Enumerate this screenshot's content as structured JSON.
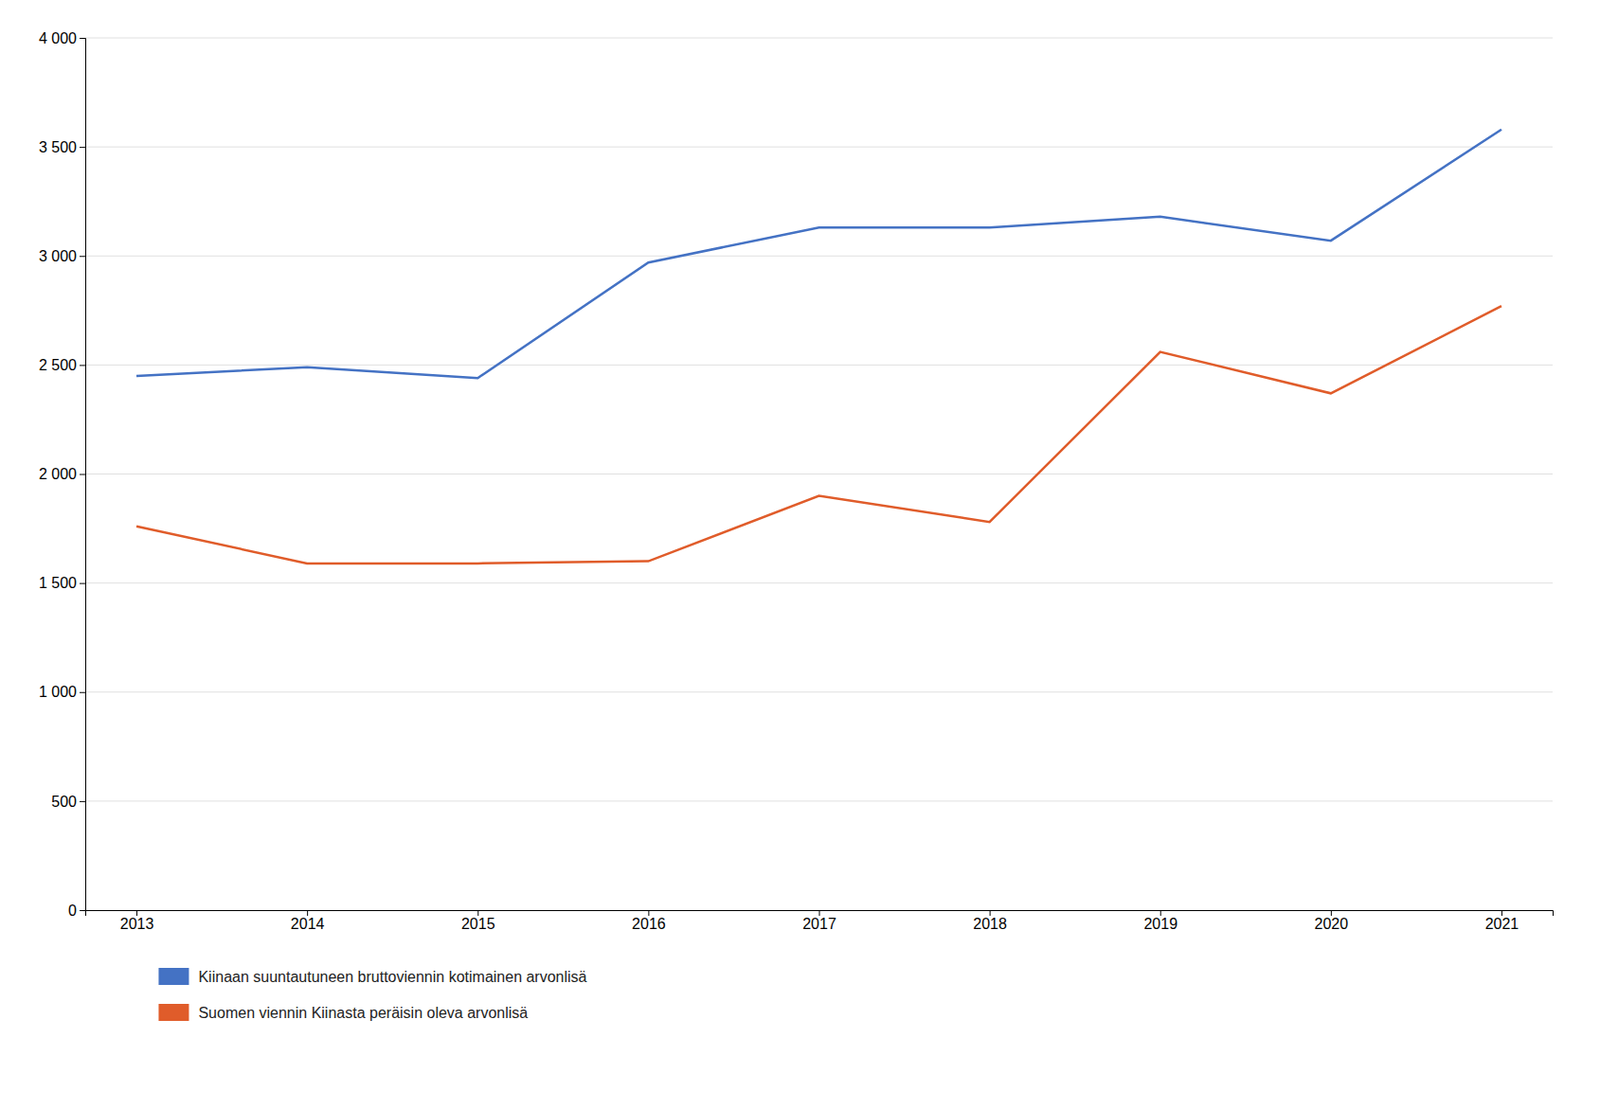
{
  "chart_data": {
    "type": "line",
    "x": [
      2013,
      2014,
      2015,
      2016,
      2017,
      2018,
      2019,
      2020,
      2021
    ],
    "series": [
      {
        "name": "Kiinaan suuntautuneen bruttoviennin kotimainen arvonlisä",
        "color": "#4472C4",
        "values": [
          2450,
          2490,
          2440,
          2970,
          3130,
          3130,
          3180,
          3070,
          3580
        ]
      },
      {
        "name": "Suomen viennin Kiinasta peräisin oleva arvonlisä",
        "color": "#E05C2A",
        "values": [
          1760,
          1590,
          1590,
          1600,
          1900,
          1780,
          2560,
          2370,
          2770
        ]
      }
    ],
    "xlim": [
      2012.7,
      2021.3
    ],
    "xticks": [
      2013,
      2014,
      2015,
      2016,
      2017,
      2018,
      2019,
      2020,
      2021
    ],
    "ylim": [
      0,
      4000
    ],
    "yticks": [
      0,
      500,
      {
        "value": 1000,
        "label": "1 000"
      },
      {
        "value": 1500,
        "label": "1 500"
      },
      {
        "value": 2000,
        "label": "2 000"
      },
      {
        "value": 2500,
        "label": "2 500"
      },
      {
        "value": 3000,
        "label": "3 000"
      },
      {
        "value": 3500,
        "label": "3 500"
      },
      {
        "value": 4000,
        "label": "4 000"
      }
    ],
    "grid": true,
    "legend": "bottom"
  }
}
